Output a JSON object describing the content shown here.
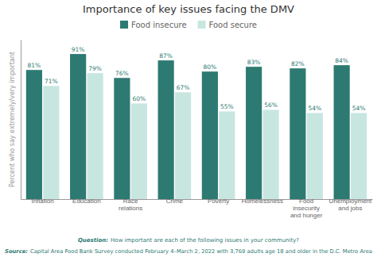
{
  "chart_data": {
    "type": "bar",
    "title": "Importance of key issues facing the DMV",
    "categories": [
      "Inflation",
      "Education",
      "Race\nrelations",
      "Crime",
      "Poverty",
      "Homelessness",
      "Food\ninsecurity\nand hunger",
      "Unemployment\nand jobs"
    ],
    "series": [
      {
        "name": "Food insecure",
        "color": "#2d7a72",
        "values": [
          81,
          91,
          76,
          87,
          80,
          83,
          82,
          84
        ],
        "value_labels": [
          "81%",
          "91%",
          "76%",
          "87%",
          "80%",
          "83%",
          "82%",
          "84%"
        ]
      },
      {
        "name": "Food secure",
        "color": "#c8e6e0",
        "values": [
          71,
          79,
          60,
          67,
          55,
          56,
          54,
          54
        ],
        "value_labels": [
          "71%",
          "79%",
          "60%",
          "67%",
          "55%",
          "56%",
          "54%",
          "54%"
        ]
      }
    ],
    "ylabel": "Percent who say extremely/very important",
    "ylim": [
      0,
      100
    ],
    "yticks": [],
    "tick_labels": "x",
    "data_labels": true,
    "legend": "top",
    "notes": [
      {
        "label": "Question:",
        "text": "How important are each of the following issues in your community?"
      },
      {
        "label": "Source:",
        "text": "Capital Area Food Bank Survey conducted February 4–March 2, 2022 with 3,769 adults age 18 and older in the D.C. Metro Area"
      }
    ]
  }
}
